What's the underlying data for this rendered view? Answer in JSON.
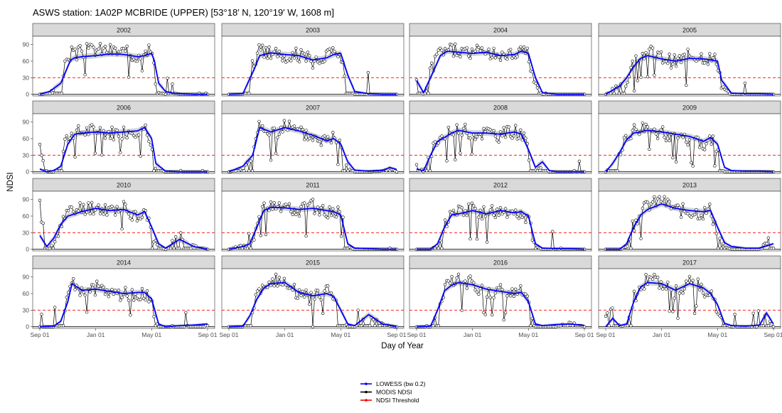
{
  "chart_data": {
    "type": "line",
    "title": "ASWS station: 1A02P MCBRIDE (UPPER) [53°18′ N, 120°19′ W, 1608 m]",
    "xlabel": "Day of Year",
    "ylabel": "NDSI",
    "x_tick_labels": [
      "Sep 01",
      "Jan 01",
      "May 01",
      "Sep 01"
    ],
    "y_ticks": [
      0,
      30,
      60,
      90
    ],
    "ylim": [
      -3,
      105
    ],
    "threshold": 30,
    "legend": {
      "position": "bottom",
      "entries": [
        {
          "label": "LOWESS (bw 0.2)",
          "color": "#0000ff"
        },
        {
          "label": "MODIS NDSI",
          "color": "#000000"
        },
        {
          "label": "NDSI Threshold",
          "color": "#ff0000"
        }
      ]
    },
    "colors": {
      "lowess": "#0000ff",
      "ndsi": "#000000",
      "threshold": "#ff0000",
      "strip": "#d9d9d9",
      "ribbon": "#bdbdbd"
    },
    "panels": [
      {
        "year": "2002",
        "x_months": [
          0,
          0.7,
          1.5,
          2,
          2.2,
          2.5,
          3,
          4,
          5,
          6,
          7,
          7.5,
          8,
          8.2,
          8.5,
          9,
          9.5,
          10,
          11,
          12
        ],
        "lowess": [
          0,
          5,
          20,
          50,
          62,
          66,
          68,
          70,
          73,
          72,
          68,
          70,
          74,
          60,
          20,
          5,
          2,
          1,
          0,
          0
        ],
        "ndsi_base": [
          0,
          2,
          28,
          65,
          75,
          70,
          78,
          82,
          80,
          76,
          70,
          85,
          80,
          40,
          5,
          0,
          3,
          0,
          0,
          0
        ]
      },
      {
        "year": "2003",
        "x_months": [
          0,
          1,
          1.8,
          2.2,
          3,
          4,
          5,
          6,
          7,
          7.5,
          8,
          8.5,
          9,
          10,
          11,
          12
        ],
        "lowess": [
          0,
          1,
          45,
          70,
          75,
          72,
          70,
          62,
          66,
          72,
          74,
          35,
          5,
          1,
          0,
          0
        ],
        "ndsi_base": [
          0,
          0,
          60,
          80,
          76,
          70,
          72,
          60,
          70,
          78,
          72,
          20,
          0,
          0,
          0,
          0
        ]
      },
      {
        "year": "2004",
        "x_months": [
          0,
          0.5,
          1,
          1.7,
          2.2,
          3,
          4,
          5,
          6,
          7,
          7.5,
          8,
          8.5,
          9,
          10,
          11,
          12
        ],
        "lowess": [
          25,
          3,
          30,
          70,
          78,
          76,
          74,
          76,
          70,
          72,
          78,
          74,
          30,
          3,
          0,
          0,
          0
        ],
        "ndsi_base": [
          25,
          0,
          40,
          80,
          82,
          78,
          74,
          80,
          68,
          72,
          85,
          70,
          20,
          0,
          0,
          0,
          0
        ]
      },
      {
        "year": "2005",
        "x_months": [
          0,
          1,
          1.5,
          2,
          2.5,
          3,
          4,
          5,
          6,
          7,
          7.5,
          8,
          8.3,
          9,
          10,
          11,
          12
        ],
        "lowess": [
          0,
          15,
          30,
          50,
          65,
          70,
          64,
          60,
          65,
          64,
          62,
          60,
          25,
          2,
          1,
          1,
          0
        ],
        "ndsi_base": [
          0,
          20,
          30,
          55,
          70,
          78,
          66,
          58,
          70,
          68,
          64,
          60,
          15,
          0,
          0,
          0,
          0
        ]
      },
      {
        "year": "2006",
        "x_months": [
          0,
          0.5,
          1,
          1.5,
          2,
          2.5,
          3,
          4,
          5,
          6,
          7,
          7.5,
          8,
          8.3,
          9,
          10,
          11,
          12
        ],
        "lowess": [
          5,
          0,
          2,
          10,
          50,
          68,
          70,
          72,
          70,
          72,
          74,
          80,
          60,
          15,
          1,
          0,
          0,
          0
        ],
        "ndsi_base": [
          48,
          0,
          0,
          30,
          60,
          70,
          72,
          75,
          70,
          72,
          76,
          82,
          55,
          5,
          0,
          0,
          0,
          0
        ]
      },
      {
        "year": "2007",
        "x_months": [
          0,
          1,
          1.7,
          2.2,
          3,
          4,
          5,
          6,
          7,
          7.5,
          8,
          8.5,
          9,
          10,
          11,
          11.5,
          12
        ],
        "lowess": [
          0,
          10,
          30,
          80,
          72,
          80,
          74,
          66,
          56,
          60,
          50,
          18,
          3,
          1,
          2,
          8,
          4
        ],
        "ndsi_base": [
          0,
          5,
          30,
          88,
          65,
          85,
          70,
          62,
          55,
          65,
          45,
          10,
          0,
          0,
          2,
          8,
          0
        ]
      },
      {
        "year": "2008",
        "x_months": [
          0,
          0.5,
          1,
          1.5,
          2,
          2.5,
          3,
          4,
          5,
          6,
          7,
          7.5,
          8,
          8.5,
          9,
          9.5,
          10,
          11,
          12
        ],
        "lowess": [
          5,
          2,
          30,
          55,
          62,
          70,
          75,
          70,
          70,
          68,
          72,
          68,
          40,
          8,
          18,
          2,
          0,
          0,
          0
        ],
        "ndsi_base": [
          20,
          0,
          35,
          60,
          65,
          72,
          78,
          68,
          72,
          66,
          74,
          70,
          35,
          5,
          15,
          0,
          0,
          0,
          0
        ]
      },
      {
        "year": "2009",
        "x_months": [
          0,
          0.5,
          1,
          1.5,
          2,
          3,
          4,
          5,
          6,
          7,
          7.5,
          8,
          8.5,
          9,
          10,
          11,
          12
        ],
        "lowess": [
          0,
          15,
          35,
          58,
          70,
          75,
          72,
          68,
          64,
          55,
          62,
          50,
          8,
          2,
          1,
          1,
          0
        ],
        "ndsi_base": [
          0,
          20,
          40,
          60,
          72,
          80,
          70,
          66,
          60,
          50,
          65,
          40,
          0,
          0,
          0,
          0,
          0
        ]
      },
      {
        "year": "2010",
        "x_months": [
          0,
          0.5,
          1,
          1.5,
          2,
          3,
          4,
          5,
          6,
          7,
          7.5,
          8,
          8.5,
          9,
          10,
          11,
          12
        ],
        "lowess": [
          25,
          5,
          20,
          45,
          60,
          68,
          74,
          70,
          72,
          62,
          68,
          40,
          10,
          2,
          18,
          5,
          0
        ],
        "ndsi_base": [
          78,
          0,
          10,
          50,
          65,
          75,
          76,
          72,
          74,
          60,
          70,
          30,
          5,
          0,
          30,
          10,
          0
        ]
      },
      {
        "year": "2011",
        "x_months": [
          0,
          1,
          1.5,
          2,
          2.5,
          3,
          4,
          5,
          6,
          7,
          7.5,
          8,
          8.5,
          9,
          10,
          11,
          12
        ],
        "lowess": [
          0,
          5,
          10,
          40,
          70,
          76,
          75,
          72,
          74,
          70,
          68,
          62,
          10,
          2,
          1,
          0,
          0
        ],
        "ndsi_base": [
          0,
          10,
          0,
          45,
          75,
          82,
          76,
          70,
          78,
          68,
          70,
          65,
          5,
          0,
          0,
          0,
          0
        ]
      },
      {
        "year": "2012",
        "x_months": [
          0,
          1,
          1.5,
          2,
          2.5,
          3,
          4,
          5,
          6,
          7,
          7.5,
          8,
          8.5,
          9,
          10,
          11,
          12
        ],
        "lowess": [
          0,
          0,
          10,
          40,
          62,
          64,
          70,
          64,
          70,
          66,
          68,
          60,
          10,
          2,
          1,
          1,
          0
        ],
        "ndsi_base": [
          0,
          0,
          10,
          45,
          65,
          68,
          72,
          62,
          74,
          64,
          70,
          55,
          5,
          0,
          0,
          0,
          0
        ]
      },
      {
        "year": "2013",
        "x_months": [
          0,
          1,
          1.5,
          2,
          2.5,
          3,
          4,
          5,
          6,
          7,
          7.5,
          8,
          8.5,
          9,
          10,
          11,
          12
        ],
        "lowess": [
          0,
          0,
          10,
          40,
          62,
          72,
          82,
          74,
          70,
          68,
          70,
          40,
          12,
          5,
          2,
          2,
          10
        ],
        "ndsi_base": [
          0,
          0,
          5,
          45,
          65,
          80,
          90,
          72,
          68,
          66,
          72,
          30,
          5,
          0,
          0,
          0,
          30
        ]
      },
      {
        "year": "2014",
        "x_months": [
          0,
          1,
          1.5,
          2,
          2.3,
          3,
          4,
          5,
          6,
          7,
          7.5,
          8,
          8.5,
          9,
          10,
          11,
          12
        ],
        "lowess": [
          0,
          1,
          10,
          45,
          78,
          66,
          68,
          64,
          60,
          62,
          62,
          50,
          5,
          0,
          2,
          3,
          5
        ],
        "ndsi_base": [
          0,
          0,
          5,
          50,
          85,
          60,
          70,
          62,
          58,
          60,
          64,
          40,
          0,
          0,
          0,
          0,
          0
        ]
      },
      {
        "year": "2015",
        "x_months": [
          0,
          1,
          1.5,
          2,
          2.5,
          3,
          4,
          5,
          6,
          7,
          7.5,
          8,
          8.5,
          9,
          10,
          11,
          12
        ],
        "lowess": [
          0,
          1,
          20,
          50,
          70,
          78,
          80,
          62,
          56,
          60,
          55,
          30,
          5,
          2,
          22,
          5,
          0
        ],
        "ndsi_base": [
          0,
          0,
          25,
          55,
          72,
          85,
          82,
          58,
          52,
          66,
          50,
          20,
          0,
          0,
          22,
          5,
          0
        ]
      },
      {
        "year": "2016",
        "x_months": [
          0,
          1,
          1.5,
          2,
          2.5,
          3,
          4,
          5,
          6,
          7,
          7.5,
          8,
          8.5,
          9,
          10,
          11,
          12
        ],
        "lowess": [
          0,
          1,
          30,
          65,
          75,
          80,
          76,
          68,
          64,
          60,
          62,
          45,
          5,
          2,
          4,
          5,
          2
        ],
        "ndsi_base": [
          0,
          0,
          30,
          70,
          78,
          85,
          78,
          62,
          66,
          58,
          64,
          40,
          0,
          0,
          0,
          10,
          0
        ]
      },
      {
        "year": "2017",
        "x_months": [
          0,
          0.5,
          1,
          1.5,
          2,
          2.5,
          3,
          4,
          5,
          6,
          7,
          7.5,
          8,
          8.5,
          9,
          10,
          11,
          11.5,
          12
        ],
        "lowess": [
          0,
          15,
          2,
          5,
          45,
          72,
          80,
          78,
          66,
          78,
          70,
          60,
          40,
          6,
          2,
          1,
          3,
          25,
          5
        ],
        "ndsi_base": [
          20,
          40,
          0,
          5,
          50,
          75,
          85,
          80,
          62,
          82,
          68,
          58,
          30,
          5,
          0,
          0,
          0,
          30,
          0
        ]
      }
    ]
  }
}
